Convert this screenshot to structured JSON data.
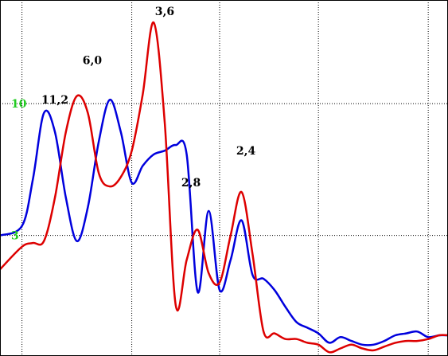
{
  "chart_data": {
    "type": "line",
    "grid": true,
    "y_ticks": [
      {
        "value": 10,
        "label": "10"
      },
      {
        "value": 3,
        "label": "3"
      }
    ],
    "x_gridlines": [
      1,
      6,
      10,
      14.5,
      19.5
    ],
    "xlim": [
      0,
      20.4
    ],
    "ylim": [
      -3.4,
      15.5
    ],
    "series": [
      {
        "color": "#0000dd",
        "x": [
          0,
          1,
          1.5,
          2,
          2.5,
          3,
          3.5,
          4,
          4.5,
          5,
          5.5,
          6,
          6.5,
          7,
          7.5,
          8,
          8.5,
          9,
          9.5,
          10,
          10.5,
          11,
          11.5,
          12,
          12.5,
          13,
          13.5,
          14,
          14.5,
          15,
          15.5,
          16,
          16.5,
          17,
          17.5,
          18,
          18.5,
          19,
          19.5,
          20,
          20.4
        ],
        "y": [
          3,
          3.5,
          6,
          9.5,
          8.5,
          5,
          2.7,
          4.5,
          8,
          10.2,
          8.5,
          5.8,
          6.7,
          7.3,
          7.5,
          7.8,
          7.3,
          0,
          4.3,
          0.1,
          1.7,
          3.8,
          0.9,
          0.7,
          0.1,
          -0.8,
          -1.6,
          -1.9,
          -2.2,
          -2.7,
          -2.4,
          -2.6,
          -2.8,
          -2.8,
          -2.6,
          -2.3,
          -2.2,
          -2.1,
          -2.4,
          -2.3,
          -2.3
        ]
      },
      {
        "color": "#dd0000",
        "x": [
          0,
          1,
          1.5,
          2,
          2.5,
          3,
          3.5,
          4,
          4.5,
          5,
          5.5,
          6,
          6.5,
          7,
          7.5,
          8,
          8.5,
          9,
          9.5,
          10,
          10.5,
          11,
          11.5,
          12,
          12.5,
          13,
          13.5,
          14,
          14.5,
          15,
          15.5,
          16,
          16.5,
          17,
          17.5,
          18,
          18.5,
          19,
          19.5,
          20,
          20.4
        ],
        "y": [
          1.2,
          2.4,
          2.6,
          2.7,
          5,
          8.5,
          10.4,
          9.5,
          6.3,
          5.6,
          6.1,
          7.5,
          10.5,
          14.3,
          9,
          -0.7,
          1.7,
          3.3,
          1,
          0.5,
          3,
          5.3,
          2,
          -2.1,
          -2.2,
          -2.5,
          -2.5,
          -2.7,
          -2.8,
          -3.2,
          -3.0,
          -2.8,
          -3.0,
          -3.1,
          -2.9,
          -2.7,
          -2.6,
          -2.6,
          -2.5,
          -2.3,
          -2.3
        ]
      }
    ],
    "data_labels": [
      {
        "text": "11,2",
        "x": 2.5,
        "y": 10.0
      },
      {
        "text": "6,0",
        "x": 4.2,
        "y": 12.1
      },
      {
        "text": "3,6",
        "x": 7.5,
        "y": 14.7
      },
      {
        "text": "2,8",
        "x": 8.7,
        "y": 5.6
      },
      {
        "text": "2,4",
        "x": 11.2,
        "y": 7.3
      }
    ]
  }
}
